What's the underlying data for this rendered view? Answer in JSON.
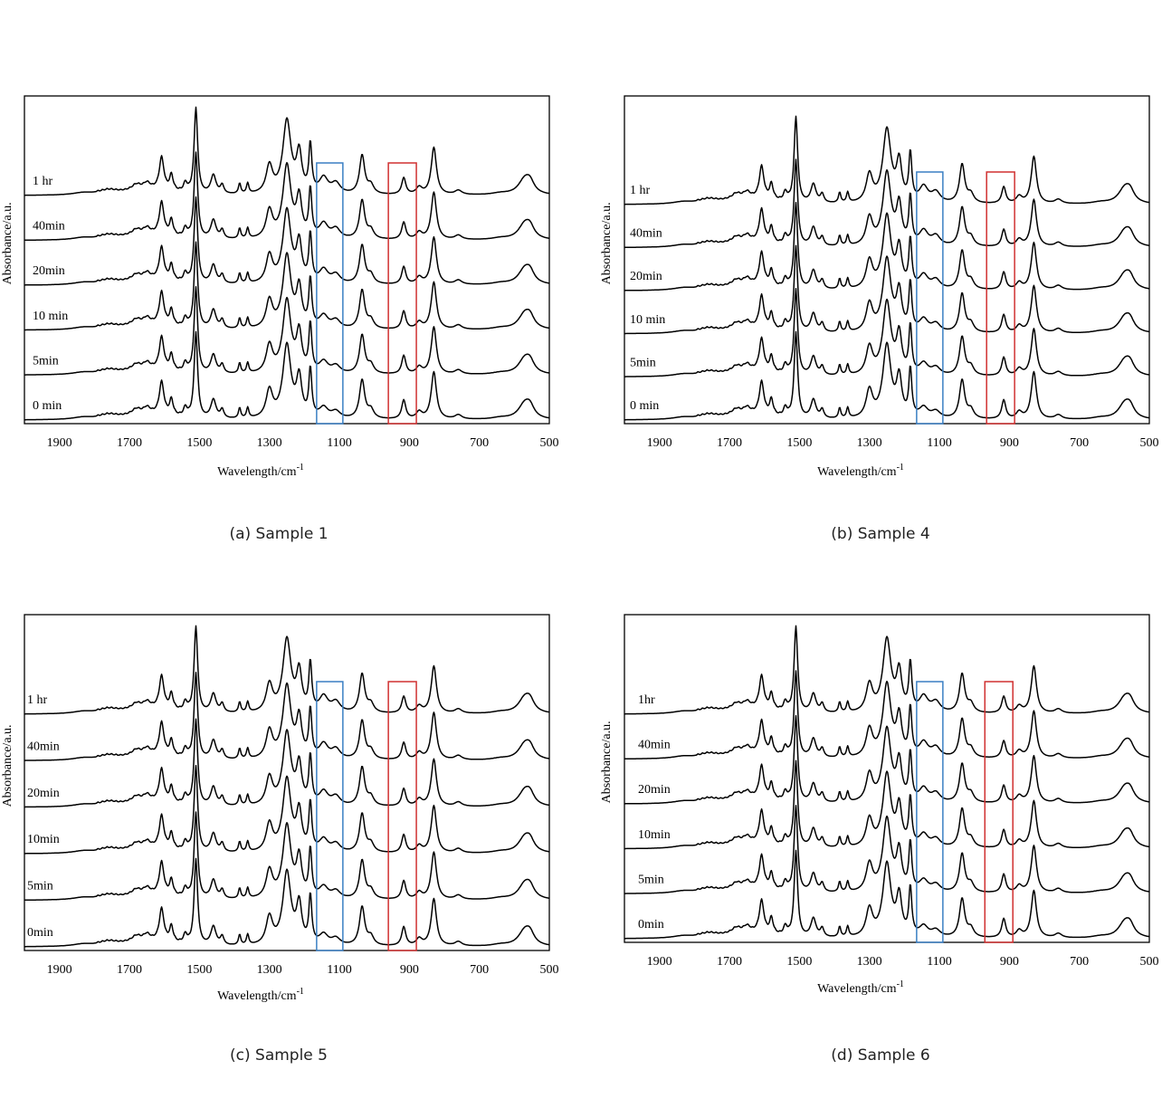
{
  "colors": {
    "line": "#000000",
    "blue_box": "#3a7fc4",
    "red_box": "#d03030"
  },
  "chart_data": [
    {
      "type": "line",
      "caption": "(a) Sample 1",
      "xlabel": "Wavelength/cm",
      "xlabel_sup": "-1",
      "ylabel": "Absorbance/a.u.",
      "xlim": [
        2000,
        500
      ],
      "xticks": [
        1900,
        1700,
        1500,
        1300,
        1100,
        900,
        700,
        500
      ],
      "series_labels": [
        "0 min",
        "5min",
        "10 min",
        "20min",
        "40min",
        "1 hr"
      ],
      "highlight_bands": [
        {
          "color": "blue",
          "x": [
            1165,
            1090
          ]
        },
        {
          "color": "red",
          "x": [
            960,
            880
          ]
        }
      ]
    },
    {
      "type": "line",
      "caption": "(b) Sample 4",
      "xlabel": "Wavelength/cm",
      "xlabel_sup": "-1",
      "ylabel": "Absorbance/a.u.",
      "xlim": [
        2000,
        500
      ],
      "xticks": [
        1900,
        1700,
        1500,
        1300,
        1100,
        900,
        700,
        500
      ],
      "series_labels": [
        "0 min",
        "5min",
        "10 min",
        "20min",
        "40min",
        "1 hr"
      ],
      "highlight_bands": [
        {
          "color": "blue",
          "x": [
            1165,
            1090
          ]
        },
        {
          "color": "red",
          "x": [
            965,
            885
          ]
        }
      ]
    },
    {
      "type": "line",
      "caption": "(c) Sample 5",
      "xlabel": "Wavelength/cm",
      "xlabel_sup": "-1",
      "ylabel": "Absorbance/a.u.",
      "xlim": [
        2000,
        500
      ],
      "xticks": [
        1900,
        1700,
        1500,
        1300,
        1100,
        900,
        700,
        500
      ],
      "series_labels": [
        "0min",
        "5min",
        "10min",
        "20min",
        "40min",
        "1 hr"
      ],
      "highlight_bands": [
        {
          "color": "blue",
          "x": [
            1165,
            1090
          ]
        },
        {
          "color": "red",
          "x": [
            960,
            880
          ]
        }
      ]
    },
    {
      "type": "line",
      "caption": "(d) Sample 6",
      "xlabel": "Wavelength/cm",
      "xlabel_sup": "-1",
      "ylabel": "Absorbance/a.u.",
      "xlim": [
        2000,
        500
      ],
      "xticks": [
        1900,
        1700,
        1500,
        1300,
        1100,
        900,
        700,
        500
      ],
      "series_labels": [
        "0min",
        "5min",
        "10min",
        "20min",
        "40min",
        "1hr"
      ],
      "highlight_bands": [
        {
          "color": "blue",
          "x": [
            1165,
            1090
          ]
        },
        {
          "color": "red",
          "x": [
            970,
            890
          ]
        }
      ]
    }
  ]
}
